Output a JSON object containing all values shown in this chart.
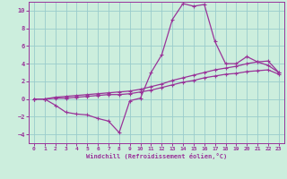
{
  "xlabel": "Windchill (Refroidissement éolien,°C)",
  "background_color": "#cceedd",
  "grid_color": "#99cccc",
  "line_color": "#993399",
  "xlim": [
    -0.5,
    23.5
  ],
  "ylim": [
    -5,
    11
  ],
  "xticks": [
    0,
    1,
    2,
    3,
    4,
    5,
    6,
    7,
    8,
    9,
    10,
    11,
    12,
    13,
    14,
    15,
    16,
    17,
    18,
    19,
    20,
    21,
    22,
    23
  ],
  "yticks": [
    -4,
    -2,
    0,
    2,
    4,
    6,
    8,
    10
  ],
  "series": [
    {
      "x": [
        0,
        1,
        2,
        3,
        4,
        5,
        6,
        7,
        8,
        9,
        10,
        11,
        12,
        13,
        14,
        15,
        16,
        17,
        18,
        19,
        20,
        21,
        22,
        23
      ],
      "y": [
        0,
        0,
        -0.7,
        -1.5,
        -1.7,
        -1.8,
        -2.2,
        -2.5,
        -3.8,
        -0.2,
        0.1,
        3.0,
        5.0,
        9.0,
        10.8,
        10.5,
        10.7,
        6.5,
        4.0,
        4.0,
        4.8,
        4.2,
        3.8,
        3.0
      ]
    },
    {
      "x": [
        0,
        1,
        2,
        3,
        4,
        5,
        6,
        7,
        8,
        9,
        10,
        11,
        12,
        13,
        14,
        15,
        16,
        17,
        18,
        19,
        20,
        21,
        22,
        23
      ],
      "y": [
        0,
        0,
        0.2,
        0.3,
        0.4,
        0.5,
        0.6,
        0.7,
        0.8,
        0.9,
        1.1,
        1.4,
        1.7,
        2.1,
        2.4,
        2.7,
        3.0,
        3.3,
        3.5,
        3.7,
        4.0,
        4.2,
        4.3,
        3.0
      ]
    },
    {
      "x": [
        0,
        1,
        2,
        3,
        4,
        5,
        6,
        7,
        8,
        9,
        10,
        11,
        12,
        13,
        14,
        15,
        16,
        17,
        18,
        19,
        20,
        21,
        22,
        23
      ],
      "y": [
        0,
        0,
        0.1,
        0.1,
        0.2,
        0.3,
        0.4,
        0.5,
        0.5,
        0.6,
        0.8,
        1.0,
        1.3,
        1.6,
        1.9,
        2.1,
        2.4,
        2.6,
        2.8,
        2.9,
        3.1,
        3.2,
        3.3,
        2.8
      ]
    }
  ]
}
